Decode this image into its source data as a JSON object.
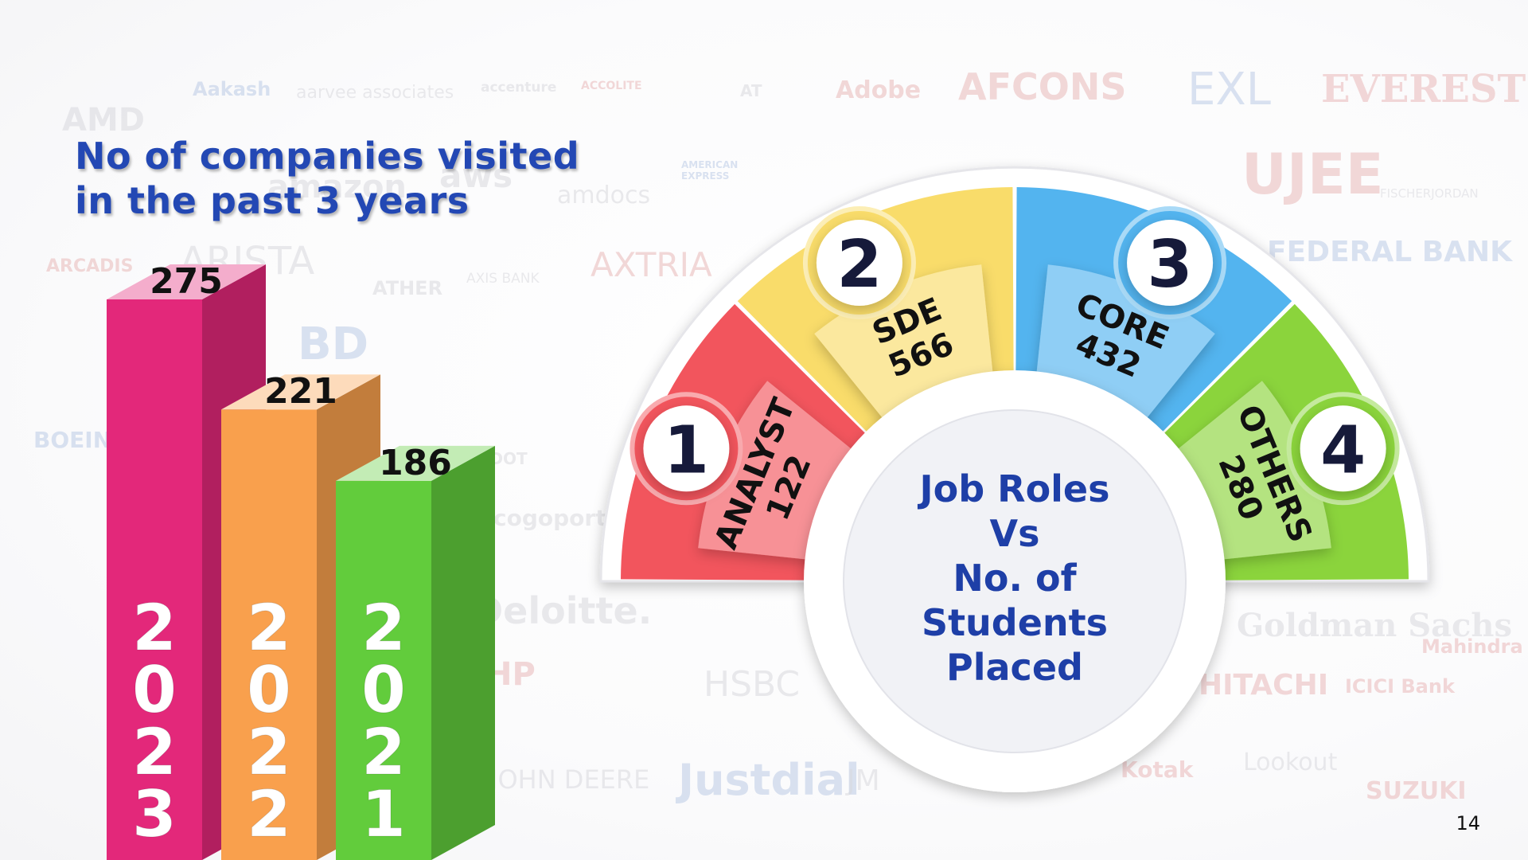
{
  "slide": {
    "title_lines": [
      "No of companies visited",
      "in the past 3 years"
    ],
    "page_number": "14"
  },
  "background_logos": [
    "AMD",
    "Aakash",
    "aarvee associates",
    "accenture",
    "ACCOLITE",
    "AT",
    "Adobe",
    "AFCONS",
    "EXL",
    "EVEREST",
    "amazon",
    "aws",
    "amdocs",
    "AMERICAN EXPRESS",
    "UJEE",
    "FISCHERJORDAN",
    "ARCADIS",
    "ARISTA",
    "ATHER",
    "AXIS BANK",
    "AXTRIA",
    "FEDERAL BANK",
    "BD",
    "BOEING",
    "C-DOT",
    "cogoport",
    "Deloitte.",
    "HP",
    "HSBC",
    "HITACHI",
    "ICICI Bank",
    "Mahindra",
    "Goldman Sachs",
    "JOHN DEERE",
    "Justdial",
    "JM",
    "Kotak",
    "Lookout",
    "SUZUKI"
  ],
  "chart_data": [
    {
      "type": "bar",
      "title": "No of companies visited in the past 3 years",
      "categories": [
        "2023",
        "2022",
        "2021"
      ],
      "values": [
        275,
        221,
        186
      ],
      "colors": [
        "#e3287a",
        "#f9a04d",
        "#62cc3c"
      ]
    },
    {
      "type": "pie",
      "title": "Job Roles Vs No. of Students Placed",
      "center_label_lines": [
        "Job Roles",
        "Vs",
        "No. of",
        "Students",
        "Placed"
      ],
      "segments": [
        {
          "number": "1",
          "label": "ANALYST",
          "value": 122,
          "color": "#f2555d"
        },
        {
          "number": "2",
          "label": "SDE",
          "value": 566,
          "color": "#f9dc6a"
        },
        {
          "number": "3",
          "label": "CORE",
          "value": 432,
          "color": "#53b4ef"
        },
        {
          "number": "4",
          "label": "OTHERS",
          "value": 280,
          "color": "#8bd43c"
        }
      ]
    }
  ]
}
